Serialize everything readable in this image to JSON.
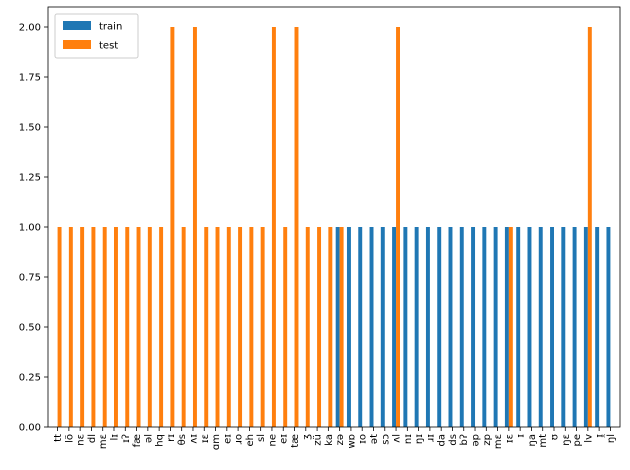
{
  "chart_data": {
    "type": "bar",
    "title": "",
    "xlabel": "",
    "ylabel": "",
    "ylim": [
      0,
      2.1
    ],
    "yticks": [
      "0.00",
      "0.25",
      "0.50",
      "0.75",
      "1.00",
      "1.25",
      "1.50",
      "1.75",
      "2.00"
    ],
    "legend_position": "top-left",
    "categories": [
      "tt",
      "lö",
      "nɛ",
      "dl",
      "mɛ",
      "lɪ",
      "ɪʔ",
      "fæ",
      "ǝl",
      "hq",
      "rɪ",
      "θs",
      "ʌɪ",
      "ɪɛ",
      "ɑm",
      "eɪ",
      "ɹo",
      "eh",
      "sl",
      "ne",
      "eɪ",
      "tæ",
      "ʒ",
      "zü",
      "ka",
      "zǝ",
      "wɒ",
      "ɪo",
      "ǝt",
      "sɔ",
      "ʌl",
      "nɪ",
      "ŋɪ",
      "ɹɪ",
      "da",
      "ds",
      "bʔ",
      "ǝp",
      "zp",
      "mɛ",
      "ɪɛ",
      "ɪ",
      "ŋa",
      "mt",
      "ʊ",
      "ŋɛ",
      "pe",
      "lv",
      "ɪ̯",
      "ŋl"
    ],
    "series": [
      {
        "name": "train",
        "color": "#1f77b4",
        "values": [
          0,
          0,
          0,
          0,
          0,
          0,
          0,
          0,
          0,
          0,
          0,
          0,
          0,
          0,
          0,
          0,
          0,
          0,
          0,
          0,
          0,
          0,
          0,
          0,
          0,
          1,
          1,
          1,
          1,
          1,
          1,
          1,
          1,
          1,
          1,
          1,
          1,
          1,
          1,
          1,
          1,
          1,
          1,
          1,
          1,
          1,
          1,
          1,
          1,
          1
        ]
      },
      {
        "name": "test",
        "color": "#ff7f0e",
        "values": [
          1,
          1,
          1,
          1,
          1,
          1,
          1,
          1,
          1,
          1,
          2,
          1,
          2,
          1,
          1,
          1,
          1,
          1,
          1,
          2,
          1,
          2,
          1,
          1,
          1,
          1,
          0,
          0,
          0,
          0,
          2,
          0,
          0,
          0,
          0,
          0,
          0,
          0,
          0,
          0,
          1,
          0,
          0,
          0,
          0,
          0,
          0,
          2,
          0,
          0
        ]
      }
    ]
  }
}
